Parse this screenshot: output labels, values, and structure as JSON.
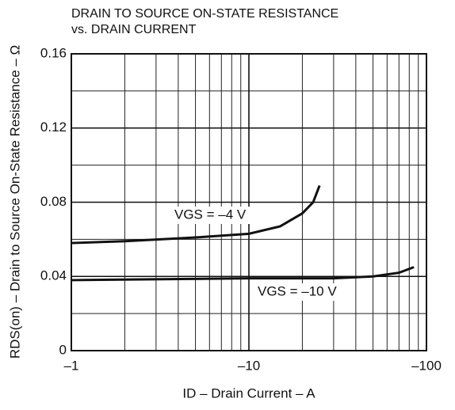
{
  "chart_data": {
    "type": "line",
    "title": "DRAIN TO SOURCE ON-STATE RESISTANCE",
    "subtitle": "vs. DRAIN CURRENT",
    "x_label": "ID – Drain Current – A",
    "y_label": "RDS(on) – Drain to Source On-State Resistance – Ω",
    "x_log": true,
    "xlim": [
      -1,
      -100
    ],
    "xticks": [
      {
        "value": -1,
        "label": "–1"
      },
      {
        "value": -10,
        "label": "–10"
      },
      {
        "value": -100,
        "label": "–100"
      }
    ],
    "minor_xticks": [
      -2,
      -3,
      -4,
      -5,
      -6,
      -7,
      -8,
      -9,
      -20,
      -30,
      -40,
      -50,
      -60,
      -70,
      -80,
      -90
    ],
    "ylim": [
      0,
      0.16
    ],
    "yticks": [
      0,
      0.04,
      0.08,
      0.12,
      0.16
    ],
    "minor_yticks": [
      0.02,
      0.06,
      0.1,
      0.14
    ],
    "grid": true,
    "series": [
      {
        "name": "VGS = –4 V",
        "color": "#111111",
        "x": [
          -1,
          -2,
          -5,
          -10,
          -15,
          -20,
          -23,
          -25
        ],
        "values": [
          0.058,
          0.059,
          0.061,
          0.063,
          0.067,
          0.074,
          0.08,
          0.089
        ]
      },
      {
        "name": "VGS = –10 V",
        "color": "#111111",
        "x": [
          -1,
          -10,
          -30,
          -50,
          -70,
          -85
        ],
        "values": [
          0.038,
          0.039,
          0.039,
          0.04,
          0.042,
          0.045
        ]
      }
    ]
  }
}
